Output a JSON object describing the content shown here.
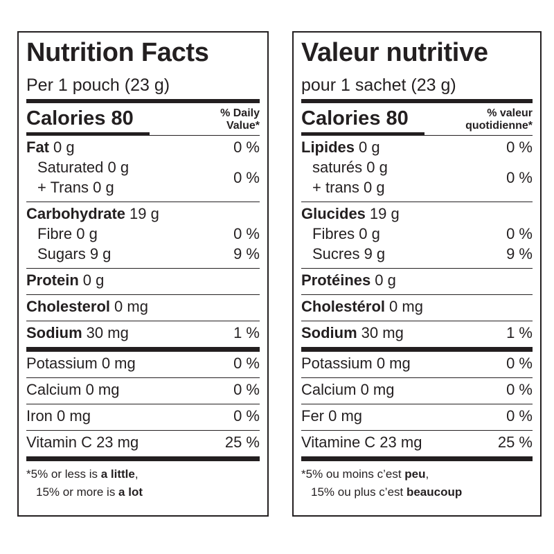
{
  "panels": [
    {
      "title": "Nutrition Facts",
      "serving": "Per 1 pouch (23 g)",
      "calories": "Calories 80",
      "dv_header": [
        "% Daily",
        "Value*"
      ],
      "sections": [
        [
          {
            "name": "Fat",
            "amount": "0 g",
            "dv": "0 %",
            "sub": [
              {
                "lines": [
                  "Saturated 0 g",
                  "+ Trans 0 g"
                ],
                "dv": "0 %"
              }
            ]
          },
          {
            "name": "Carbohydrate",
            "amount": "19 g",
            "sub": [
              {
                "text": "Fibre 0 g",
                "dv": "0 %"
              },
              {
                "text": "Sugars 9 g",
                "dv": "9 %"
              }
            ]
          },
          {
            "name": "Protein",
            "amount": "0 g"
          },
          {
            "name": "Cholesterol",
            "amount": "0 mg"
          },
          {
            "name": "Sodium",
            "amount": "30 mg",
            "dv": "1 %"
          }
        ],
        [
          {
            "text": "Potassium 0 mg",
            "dv": "0 %"
          },
          {
            "text": "Calcium 0 mg",
            "dv": "0 %"
          },
          {
            "text": "Iron 0 mg",
            "dv": "0 %"
          },
          {
            "text": "Vitamin C 23 mg",
            "dv": "25 %"
          }
        ]
      ],
      "footnote": [
        [
          "*5% or less is ",
          "a little",
          ","
        ],
        [
          "15% or more is ",
          "a lot"
        ]
      ]
    },
    {
      "title": "Valeur nutritive",
      "serving": "pour 1 sachet (23 g)",
      "calories": "Calories 80",
      "dv_header": [
        "% valeur",
        "quotidienne*"
      ],
      "sections": [
        [
          {
            "name": "Lipides",
            "amount": "0 g",
            "dv": "0 %",
            "sub": [
              {
                "lines": [
                  "saturés 0 g",
                  "+ trans 0 g"
                ],
                "dv": "0 %"
              }
            ]
          },
          {
            "name": "Glucides",
            "amount": "19 g",
            "sub": [
              {
                "text": "Fibres 0 g",
                "dv": "0 %"
              },
              {
                "text": "Sucres 9 g",
                "dv": "9 %"
              }
            ]
          },
          {
            "name": "Protéines",
            "amount": "0 g"
          },
          {
            "name": "Cholestérol",
            "amount": "0 mg"
          },
          {
            "name": "Sodium",
            "amount": "30 mg",
            "dv": "1 %"
          }
        ],
        [
          {
            "text": "Potassium 0 mg",
            "dv": "0 %"
          },
          {
            "text": "Calcium 0 mg",
            "dv": "0 %"
          },
          {
            "text": "Fer 0 mg",
            "dv": "0 %"
          },
          {
            "text": "Vitamine C 23 mg",
            "dv": "25 %"
          }
        ]
      ],
      "footnote": [
        [
          "*5% ou moins c’est ",
          "peu",
          ","
        ],
        [
          "15% ou plus c’est ",
          "beaucoup"
        ]
      ]
    }
  ]
}
